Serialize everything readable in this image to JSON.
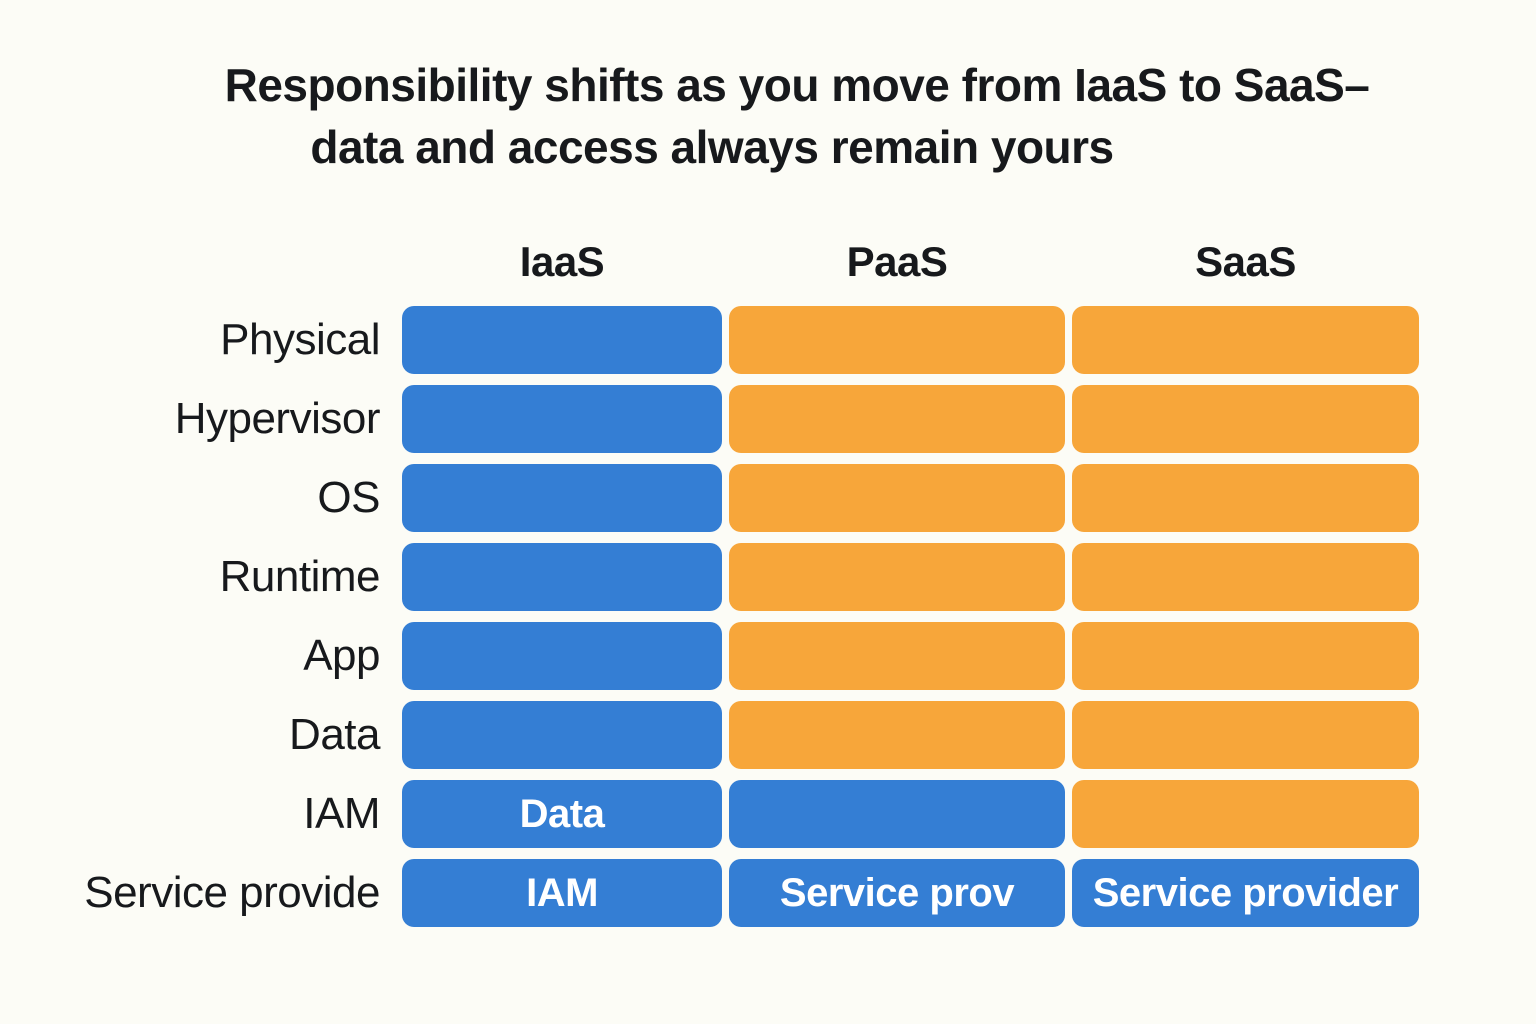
{
  "title": {
    "line1": "Responsibility shifts as you move from IaaS to SaaS–",
    "line2": "data and access always remain yours"
  },
  "columns": [
    "IaaS",
    "PaaS",
    "SaaS"
  ],
  "rows": [
    {
      "label": "Physical",
      "cells": [
        {
          "color": "blue",
          "text": ""
        },
        {
          "color": "orange",
          "text": ""
        },
        {
          "color": "orange",
          "text": ""
        }
      ]
    },
    {
      "label": "Hypervisor",
      "cells": [
        {
          "color": "blue",
          "text": ""
        },
        {
          "color": "orange",
          "text": ""
        },
        {
          "color": "orange",
          "text": ""
        }
      ]
    },
    {
      "label": "OS",
      "cells": [
        {
          "color": "blue",
          "text": ""
        },
        {
          "color": "orange",
          "text": ""
        },
        {
          "color": "orange",
          "text": ""
        }
      ]
    },
    {
      "label": "Runtime",
      "cells": [
        {
          "color": "blue",
          "text": ""
        },
        {
          "color": "orange",
          "text": ""
        },
        {
          "color": "orange",
          "text": ""
        }
      ]
    },
    {
      "label": "App",
      "cells": [
        {
          "color": "blue",
          "text": ""
        },
        {
          "color": "orange",
          "text": ""
        },
        {
          "color": "orange",
          "text": ""
        }
      ]
    },
    {
      "label": "Data",
      "cells": [
        {
          "color": "blue",
          "text": ""
        },
        {
          "color": "orange",
          "text": ""
        },
        {
          "color": "orange",
          "text": ""
        }
      ]
    },
    {
      "label": "IAM",
      "cells": [
        {
          "color": "blue",
          "text": "Data"
        },
        {
          "color": "blue",
          "text": ""
        },
        {
          "color": "orange",
          "text": ""
        }
      ]
    },
    {
      "label": "Service provide",
      "cells": [
        {
          "color": "blue",
          "text": "IAM"
        },
        {
          "color": "blue",
          "text": "Service prov"
        },
        {
          "color": "blue",
          "text": "Service provider"
        }
      ]
    }
  ],
  "colors": {
    "blue": "#347ED4",
    "orange": "#F7A63A",
    "background": "#FCFCF6",
    "heading_text": "#17191C",
    "cell_text": "#FFFFFF"
  },
  "chart_data": {
    "type": "table",
    "title": "Responsibility shifts as you move from IaaS to SaaS– data and access always remain yours",
    "columns": [
      "IaaS",
      "PaaS",
      "SaaS"
    ],
    "row_labels": [
      "Physical",
      "Hypervisor",
      "OS",
      "Runtime",
      "App",
      "Data",
      "IAM",
      "Service provide"
    ],
    "cell_colors": [
      [
        "blue",
        "orange",
        "orange"
      ],
      [
        "blue",
        "orange",
        "orange"
      ],
      [
        "blue",
        "orange",
        "orange"
      ],
      [
        "blue",
        "orange",
        "orange"
      ],
      [
        "blue",
        "orange",
        "orange"
      ],
      [
        "blue",
        "orange",
        "orange"
      ],
      [
        "blue",
        "blue",
        "orange"
      ],
      [
        "blue",
        "blue",
        "blue"
      ]
    ],
    "cell_labels": [
      [
        "",
        "",
        ""
      ],
      [
        "",
        "",
        ""
      ],
      [
        "",
        "",
        ""
      ],
      [
        "",
        "",
        ""
      ],
      [
        "",
        "",
        ""
      ],
      [
        "",
        "",
        ""
      ],
      [
        "Data",
        "",
        ""
      ],
      [
        "IAM",
        "Service prov",
        "Service provider"
      ]
    ],
    "legend_position": "none",
    "grid": false
  }
}
